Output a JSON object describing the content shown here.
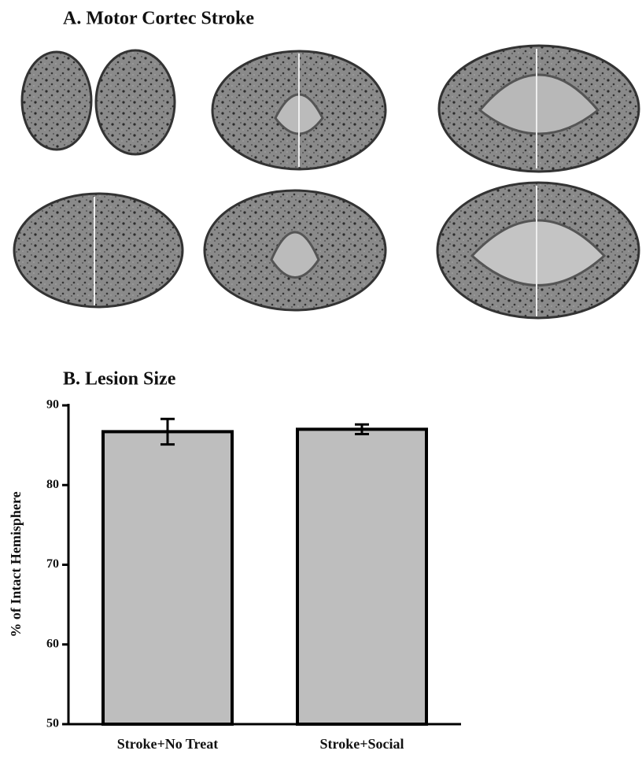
{
  "panel_a": {
    "title": "A. Motor Cortec Stroke"
  },
  "chart_data": {
    "type": "bar",
    "title": "B. Lesion Size",
    "ylabel": "% of Intact Hemisphere",
    "categories": [
      "Stroke+No Treat",
      "Stroke+Social"
    ],
    "values": [
      86.7,
      87.0
    ],
    "errors": [
      1.6,
      0.6
    ],
    "color": "#bebebe",
    "ylim": [
      50,
      90
    ],
    "yticks": [
      50,
      60,
      70,
      80,
      90
    ],
    "grid": false
  }
}
